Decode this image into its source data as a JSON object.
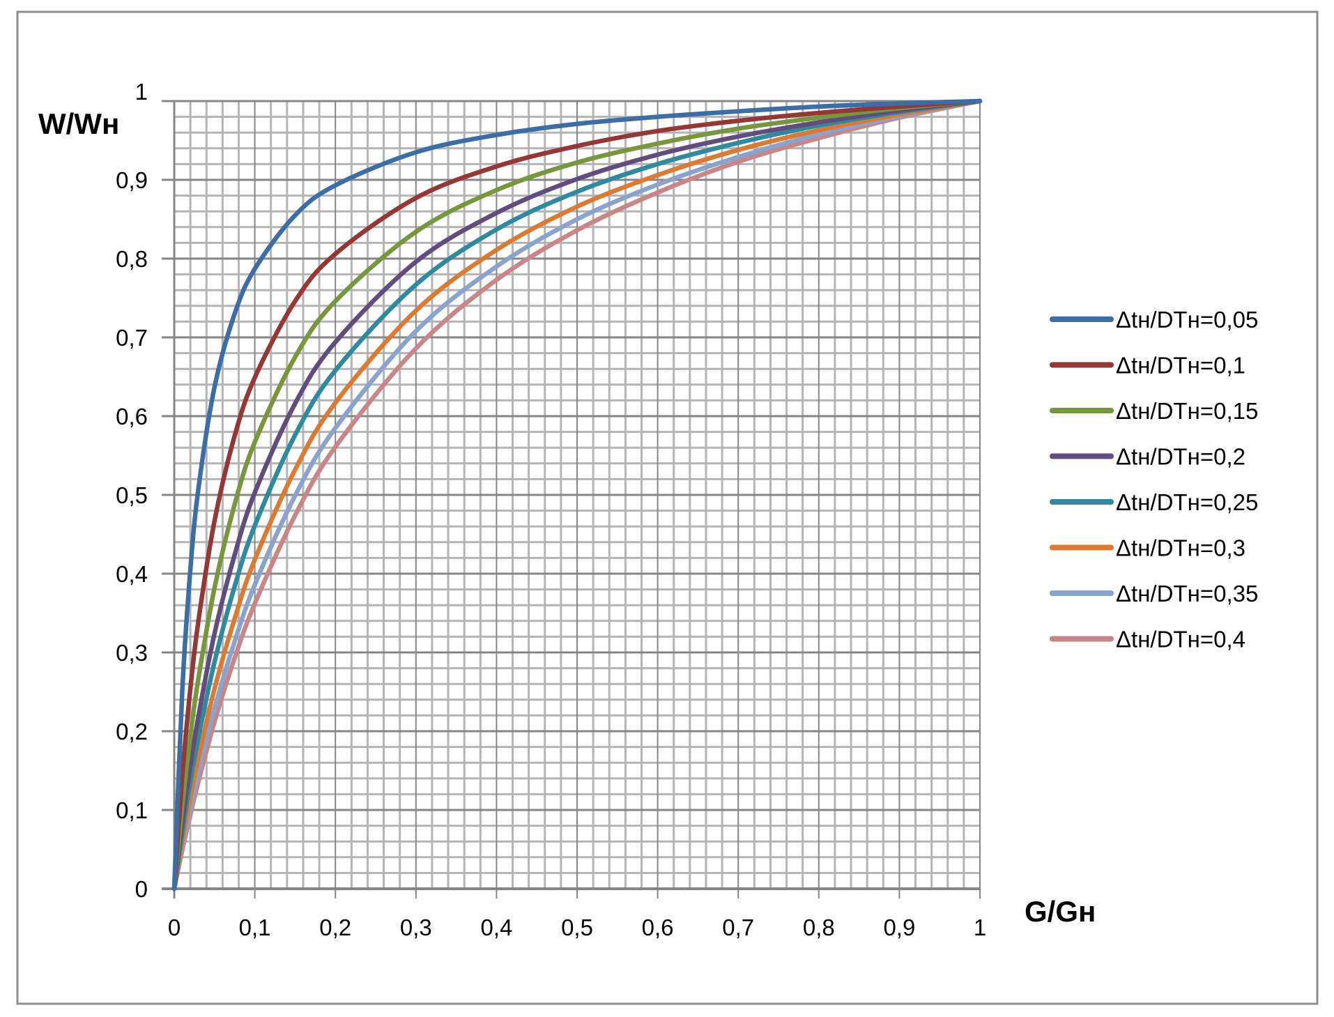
{
  "chart_data": {
    "type": "line",
    "title": "",
    "xlabel": "G/Gн",
    "ylabel": "W/Wн",
    "xlim": [
      0,
      1
    ],
    "ylim": [
      0,
      1
    ],
    "grid": true,
    "grid_major_step": 0.1,
    "grid_minor_step": 0.02,
    "legend_position": "right",
    "x_ticks": [
      "0",
      "0,1",
      "0,2",
      "0,3",
      "0,4",
      "0,5",
      "0,6",
      "0,7",
      "0,8",
      "0,9",
      "1"
    ],
    "y_ticks": [
      "0",
      "0,1",
      "0,2",
      "0,3",
      "0,4",
      "0,5",
      "0,6",
      "0,7",
      "0,8",
      "0,9",
      "1"
    ],
    "x": [
      0,
      0.01,
      0.02,
      0.03,
      0.05,
      0.075,
      0.1,
      0.15,
      0.2,
      0.3,
      0.4,
      0.5,
      0.6,
      0.7,
      0.8,
      0.9,
      1
    ],
    "series": [
      {
        "name": "Δtн/DTн=0,05",
        "color": "#3b6ea6",
        "values": [
          0,
          0.252,
          0.405,
          0.508,
          0.637,
          0.73,
          0.787,
          0.855,
          0.893,
          0.935,
          0.957,
          0.971,
          0.98,
          0.987,
          0.993,
          0.997,
          1
        ]
      },
      {
        "name": "Δtн/DTн=0,1",
        "color": "#953735",
        "values": [
          0,
          0.144,
          0.254,
          0.34,
          0.467,
          0.575,
          0.649,
          0.746,
          0.806,
          0.877,
          0.917,
          0.943,
          0.962,
          0.975,
          0.985,
          0.993,
          1
        ]
      },
      {
        "name": "Δtн/DTн=0,15",
        "color": "#77973d",
        "values": [
          0,
          0.106,
          0.194,
          0.267,
          0.382,
          0.488,
          0.567,
          0.675,
          0.746,
          0.834,
          0.887,
          0.922,
          0.946,
          0.965,
          0.979,
          0.991,
          1
        ]
      },
      {
        "name": "Δtн/DTн=0,2",
        "color": "#614c7e",
        "values": [
          0,
          0.084,
          0.156,
          0.219,
          0.324,
          0.424,
          0.503,
          0.616,
          0.694,
          0.796,
          0.858,
          0.901,
          0.932,
          0.955,
          0.973,
          0.988,
          1
        ]
      },
      {
        "name": "Δtн/DTн=0,25",
        "color": "#2f8a9e",
        "values": [
          0,
          0.072,
          0.136,
          0.192,
          0.288,
          0.384,
          0.461,
          0.576,
          0.658,
          0.767,
          0.837,
          0.885,
          0.92,
          0.947,
          0.969,
          0.986,
          1
        ]
      },
      {
        "name": "Δtн/DTн=0,3",
        "color": "#db7b33",
        "values": [
          0,
          0.061,
          0.116,
          0.166,
          0.254,
          0.343,
          0.418,
          0.532,
          0.617,
          0.734,
          0.811,
          0.866,
          0.906,
          0.938,
          0.963,
          0.983,
          1
        ]
      },
      {
        "name": "Δtн/DTн=0,35",
        "color": "#8aa3cc",
        "values": [
          0,
          0.054,
          0.103,
          0.149,
          0.229,
          0.314,
          0.386,
          0.499,
          0.585,
          0.708,
          0.79,
          0.85,
          0.894,
          0.929,
          0.958,
          0.981,
          1
        ]
      },
      {
        "name": "Δtн/DTн=0,4",
        "color": "#c98686",
        "values": [
          0,
          0.049,
          0.094,
          0.136,
          0.212,
          0.293,
          0.362,
          0.474,
          0.561,
          0.686,
          0.773,
          0.836,
          0.884,
          0.923,
          0.953,
          0.979,
          1
        ]
      }
    ]
  }
}
